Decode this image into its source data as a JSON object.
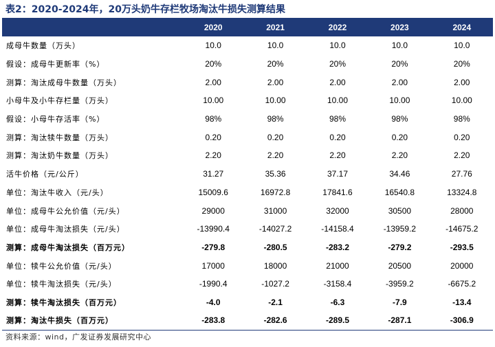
{
  "title": "表2：2020-2024年，20万头奶牛存栏牧场淘汰牛损失测算结果",
  "columns": [
    "",
    "2020",
    "2021",
    "2022",
    "2023",
    "2024"
  ],
  "rows": [
    {
      "label": "成母牛数量（万头）",
      "values": [
        "10.0",
        "10.0",
        "10.0",
        "10.0",
        "10.0"
      ],
      "bold": false
    },
    {
      "label": "假设：成母牛更新率（%）",
      "values": [
        "20%",
        "20%",
        "20%",
        "20%",
        "20%"
      ],
      "bold": false
    },
    {
      "label": "测算：淘汰成母牛数量（万头）",
      "values": [
        "2.00",
        "2.00",
        "2.00",
        "2.00",
        "2.00"
      ],
      "bold": false
    },
    {
      "label": "小母牛及小牛存栏量（万头）",
      "values": [
        "10.00",
        "10.00",
        "10.00",
        "10.00",
        "10.00"
      ],
      "bold": false
    },
    {
      "label": "假设：小母牛存活率（%）",
      "values": [
        "98%",
        "98%",
        "98%",
        "98%",
        "98%"
      ],
      "bold": false
    },
    {
      "label": "测算：淘汰犊牛数量（万头）",
      "values": [
        "0.20",
        "0.20",
        "0.20",
        "0.20",
        "0.20"
      ],
      "bold": false
    },
    {
      "label": "测算：淘汰奶牛数量（万头）",
      "values": [
        "2.20",
        "2.20",
        "2.20",
        "2.20",
        "2.20"
      ],
      "bold": false
    },
    {
      "label": "活牛价格（元/公斤）",
      "values": [
        "31.27",
        "35.36",
        "37.17",
        "34.46",
        "27.76"
      ],
      "bold": false
    },
    {
      "label": "单位：淘汰牛收入（元/头）",
      "values": [
        "15009.6",
        "16972.8",
        "17841.6",
        "16540.8",
        "13324.8"
      ],
      "bold": false
    },
    {
      "label": "单位：成母牛公允价值（元/头）",
      "values": [
        "29000",
        "31000",
        "32000",
        "30500",
        "28000"
      ],
      "bold": false
    },
    {
      "label": "单位：成母牛淘汰损失（元/头）",
      "values": [
        "-13990.4",
        "-14027.2",
        "-14158.4",
        "-13959.2",
        "-14675.2"
      ],
      "bold": false
    },
    {
      "label": "测算：成母牛淘汰损失（百万元）",
      "values": [
        "-279.8",
        "-280.5",
        "-283.2",
        "-279.2",
        "-293.5"
      ],
      "bold": true
    },
    {
      "label": "单位：犊牛公允价值（元/头）",
      "values": [
        "17000",
        "18000",
        "21000",
        "20500",
        "20000"
      ],
      "bold": false
    },
    {
      "label": "单位：犊牛淘汰损失（元/头）",
      "values": [
        "-1990.4",
        "-1027.2",
        "-3158.4",
        "-3959.2",
        "-6675.2"
      ],
      "bold": false
    },
    {
      "label": "测算：犊牛淘汰损失（百万元）",
      "values": [
        "-4.0",
        "-2.1",
        "-6.3",
        "-7.9",
        "-13.4"
      ],
      "bold": true
    },
    {
      "label": "测算：淘汰牛损失（百万元）",
      "values": [
        "-283.8",
        "-282.6",
        "-289.5",
        "-287.1",
        "-306.9"
      ],
      "bold": true
    }
  ],
  "source": "资料来源：wind，广发证券发展研究中心",
  "colors": {
    "header_bg": "#1f3a78",
    "title": "#1f3a78"
  }
}
